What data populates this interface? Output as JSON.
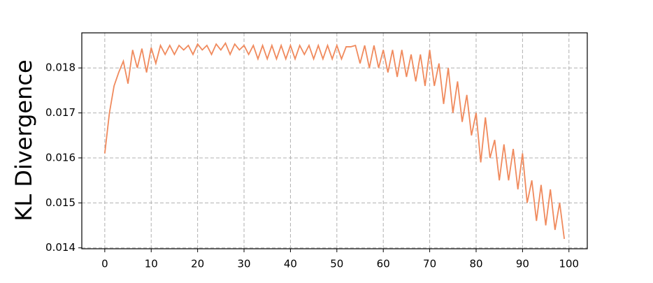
{
  "chart_data": {
    "type": "line",
    "ylabel": "KL Divergence",
    "x": [
      0,
      1,
      2,
      3,
      4,
      5,
      6,
      7,
      8,
      9,
      10,
      11,
      12,
      13,
      14,
      15,
      16,
      17,
      18,
      19,
      20,
      21,
      22,
      23,
      24,
      25,
      26,
      27,
      28,
      29,
      30,
      31,
      32,
      33,
      34,
      35,
      36,
      37,
      38,
      39,
      40,
      41,
      42,
      43,
      44,
      45,
      46,
      47,
      48,
      49,
      50,
      51,
      52,
      53,
      54,
      55,
      56,
      57,
      58,
      59,
      60,
      61,
      62,
      63,
      64,
      65,
      66,
      67,
      68,
      69,
      70,
      71,
      72,
      73,
      74,
      75,
      76,
      77,
      78,
      79,
      80,
      81,
      82,
      83,
      84,
      85,
      86,
      87,
      88,
      89,
      90,
      91,
      92,
      93,
      94,
      95,
      96,
      97,
      98,
      99
    ],
    "series": [
      {
        "color": "#f08a5d",
        "values": [
          0.0161,
          0.017,
          0.0176,
          0.0179,
          0.01815,
          0.01765,
          0.0184,
          0.018,
          0.01843,
          0.0179,
          0.01845,
          0.0181,
          0.0185,
          0.0183,
          0.0185,
          0.0183,
          0.0185,
          0.0184,
          0.0185,
          0.0183,
          0.01853,
          0.0184,
          0.0185,
          0.0183,
          0.01853,
          0.0184,
          0.01855,
          0.0183,
          0.01853,
          0.0184,
          0.0185,
          0.0183,
          0.0185,
          0.0182,
          0.0185,
          0.0182,
          0.0185,
          0.0182,
          0.0185,
          0.0182,
          0.0185,
          0.0182,
          0.0185,
          0.0183,
          0.0185,
          0.0182,
          0.0185,
          0.0182,
          0.0185,
          0.0182,
          0.0185,
          0.0182,
          0.01847,
          0.01847,
          0.0185,
          0.0181,
          0.0185,
          0.018,
          0.0185,
          0.018,
          0.0184,
          0.0179,
          0.0184,
          0.0178,
          0.0184,
          0.0178,
          0.0183,
          0.0177,
          0.0183,
          0.0176,
          0.0184,
          0.0176,
          0.0181,
          0.0172,
          0.018,
          0.017,
          0.0177,
          0.0168,
          0.0174,
          0.0165,
          0.017,
          0.0159,
          0.0169,
          0.016,
          0.0164,
          0.0155,
          0.0163,
          0.0155,
          0.0162,
          0.0153,
          0.0161,
          0.015,
          0.0155,
          0.0146,
          0.0154,
          0.0145,
          0.0153,
          0.0144,
          0.015,
          0.0142
        ]
      }
    ],
    "xlim": [
      -4.95,
      103.95
    ],
    "ylim": [
      0.01398,
      0.01878
    ],
    "xticks": [
      0,
      10,
      20,
      30,
      40,
      50,
      60,
      70,
      80,
      90,
      100
    ],
    "yticks": [
      0.014,
      0.015,
      0.016,
      0.017,
      0.018
    ],
    "grid": true
  }
}
